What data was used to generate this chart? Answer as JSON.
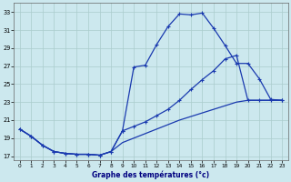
{
  "title": "Graphe des températures (°c)",
  "background_color": "#cce8ee",
  "grid_color": "#aacccc",
  "line_color": "#1a3aaf",
  "xlim": [
    -0.5,
    23.5
  ],
  "ylim": [
    16.5,
    34
  ],
  "yticks": [
    17,
    19,
    21,
    23,
    25,
    27,
    29,
    31,
    33
  ],
  "xticks": [
    0,
    1,
    2,
    3,
    4,
    5,
    6,
    7,
    8,
    9,
    10,
    11,
    12,
    13,
    14,
    15,
    16,
    17,
    18,
    19,
    20,
    21,
    22,
    23
  ],
  "curve_top_x": [
    0,
    1,
    2,
    3,
    4,
    5,
    6,
    7,
    8,
    9,
    10,
    11,
    12,
    13,
    14,
    15,
    16,
    17,
    18,
    19,
    20,
    21,
    22,
    23
  ],
  "curve_top_y": [
    20.0,
    19.2,
    18.2,
    17.5,
    17.3,
    17.2,
    17.2,
    17.1,
    17.5,
    19.8,
    26.9,
    27.1,
    29.4,
    31.4,
    32.8,
    32.7,
    32.9,
    31.2,
    29.3,
    27.3,
    27.3,
    25.6,
    23.3,
    23.2
  ],
  "curve_mid_x": [
    0,
    1,
    2,
    3,
    4,
    5,
    6,
    7,
    8,
    9,
    10,
    11,
    12,
    13,
    14,
    15,
    16,
    17,
    18,
    19,
    20,
    21,
    22,
    23
  ],
  "curve_mid_y": [
    20.0,
    19.2,
    18.2,
    17.5,
    17.3,
    17.2,
    17.2,
    17.1,
    17.5,
    19.8,
    20.3,
    20.8,
    21.5,
    22.2,
    23.2,
    24.4,
    25.5,
    26.5,
    27.8,
    28.2,
    23.2,
    23.2,
    23.2,
    23.2
  ],
  "curve_bot_x": [
    0,
    1,
    2,
    3,
    4,
    5,
    6,
    7,
    8,
    9,
    10,
    11,
    12,
    13,
    14,
    15,
    16,
    17,
    18,
    19,
    20,
    21,
    22,
    23
  ],
  "curve_bot_y": [
    20.0,
    19.2,
    18.2,
    17.5,
    17.3,
    17.2,
    17.2,
    17.1,
    17.5,
    18.5,
    19.0,
    19.5,
    20.0,
    20.5,
    21.0,
    21.4,
    21.8,
    22.2,
    22.6,
    23.0,
    23.2,
    23.2,
    23.2,
    23.2
  ]
}
